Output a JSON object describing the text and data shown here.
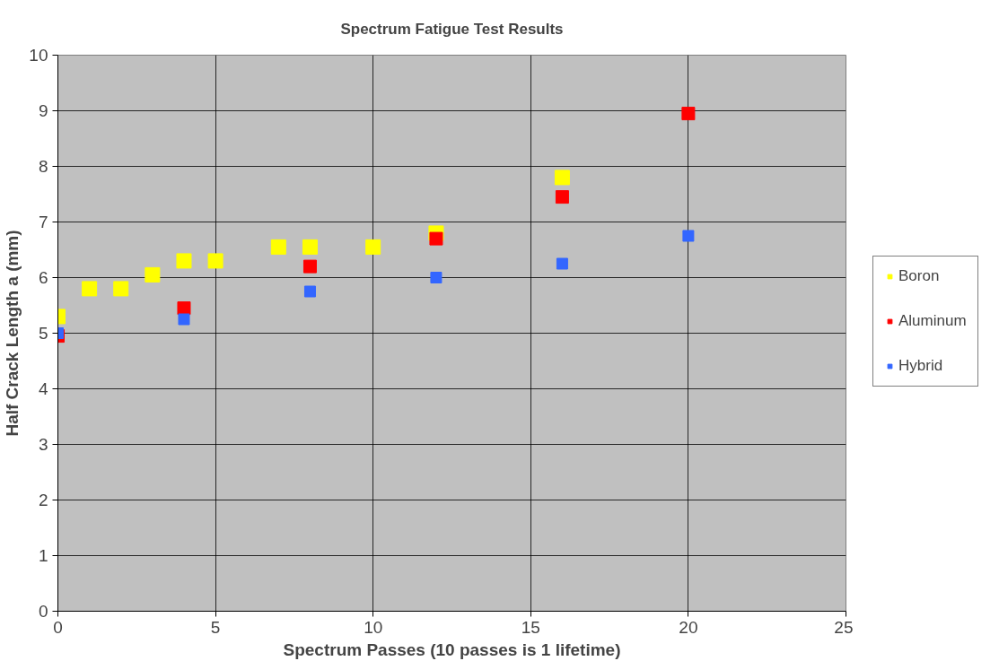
{
  "chart_data": {
    "type": "scatter",
    "title": "Spectrum Fatigue Test Results",
    "xlabel": "Spectrum Passes (10 passes is 1 lifetime)",
    "ylabel": "Half Crack Length a (mm)",
    "xlim": [
      0,
      25
    ],
    "xticks": [
      0,
      5,
      10,
      15,
      20,
      25
    ],
    "ylim": [
      0,
      10
    ],
    "yticks": [
      0,
      1,
      2,
      3,
      4,
      5,
      6,
      7,
      8,
      9,
      10
    ],
    "grid": true,
    "legend": "right",
    "marker": "square",
    "series": [
      {
        "name": "Boron",
        "color": "#ffff00",
        "x": [
          0,
          1,
          2,
          3,
          4,
          5,
          7,
          8,
          10,
          12,
          16
        ],
        "values": [
          5.3,
          5.8,
          5.8,
          6.05,
          6.3,
          6.3,
          6.55,
          6.55,
          6.55,
          6.8,
          7.8
        ]
      },
      {
        "name": "Aluminum",
        "color": "#ff0000",
        "x": [
          0,
          4,
          8,
          12,
          16,
          20
        ],
        "values": [
          4.95,
          5.45,
          6.2,
          6.7,
          7.45,
          8.95
        ]
      },
      {
        "name": "Hybrid",
        "color": "#3366ff",
        "x": [
          0,
          4,
          8,
          12,
          16,
          20
        ],
        "values": [
          5.0,
          5.25,
          5.75,
          6.0,
          6.25,
          6.75
        ]
      }
    ]
  }
}
